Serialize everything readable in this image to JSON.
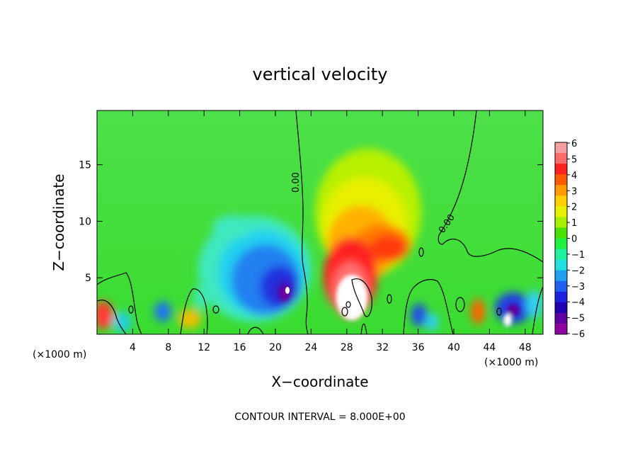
{
  "chart_data": {
    "type": "heatmap",
    "title": "vertical velocity",
    "xlabel": "X−coordinate",
    "ylabel": "Z−coordinate",
    "x_unit_left": "(×1000 m)",
    "x_unit_right": "(×1000 m)",
    "footer": "CONTOUR INTERVAL = 8.000E+00",
    "xlim": [
      0,
      50
    ],
    "ylim": [
      0,
      19.8
    ],
    "x_ticks": [
      "4",
      "8",
      "12",
      "16",
      "20",
      "24",
      "28",
      "32",
      "36",
      "40",
      "44",
      "48"
    ],
    "y_ticks": [
      "5",
      "10",
      "15"
    ],
    "colorbar": {
      "levels": [
        "6",
        "5",
        "4",
        "3",
        "2",
        "1",
        "0",
        "−1",
        "−2",
        "−3",
        "−4",
        "−5",
        "−6"
      ],
      "colors": [
        "#f4a0a0",
        "#ff6a6a",
        "#ff2020",
        "#ff5a00",
        "#ff9a00",
        "#ffd000",
        "#e8f000",
        "#a8f000",
        "#4ae000",
        "#20f040",
        "#20f0a0",
        "#20e0e0",
        "#20a0f0",
        "#2060f0",
        "#2020e0",
        "#2000b0",
        "#6000a0",
        "#9000a0"
      ]
    },
    "contour_labels": [
      "0.00",
      "0.00"
    ],
    "features": [
      {
        "name": "updraft",
        "x": 29,
        "z": 3,
        "w": 6
      },
      {
        "name": "upper-updraft",
        "x": 32,
        "z": 8,
        "w": 3.5
      },
      {
        "name": "downdraft",
        "x": 21,
        "z": 4,
        "w": -5.5
      },
      {
        "name": "downdraft",
        "x": 46,
        "z": 2,
        "w": -5
      },
      {
        "name": "downdraft",
        "x": 36.5,
        "z": 2,
        "w": -4
      },
      {
        "name": "updraft",
        "x": 1,
        "z": 1.5,
        "w": 4
      },
      {
        "name": "updraft",
        "x": 43,
        "z": 2.5,
        "w": 3.5
      }
    ]
  }
}
